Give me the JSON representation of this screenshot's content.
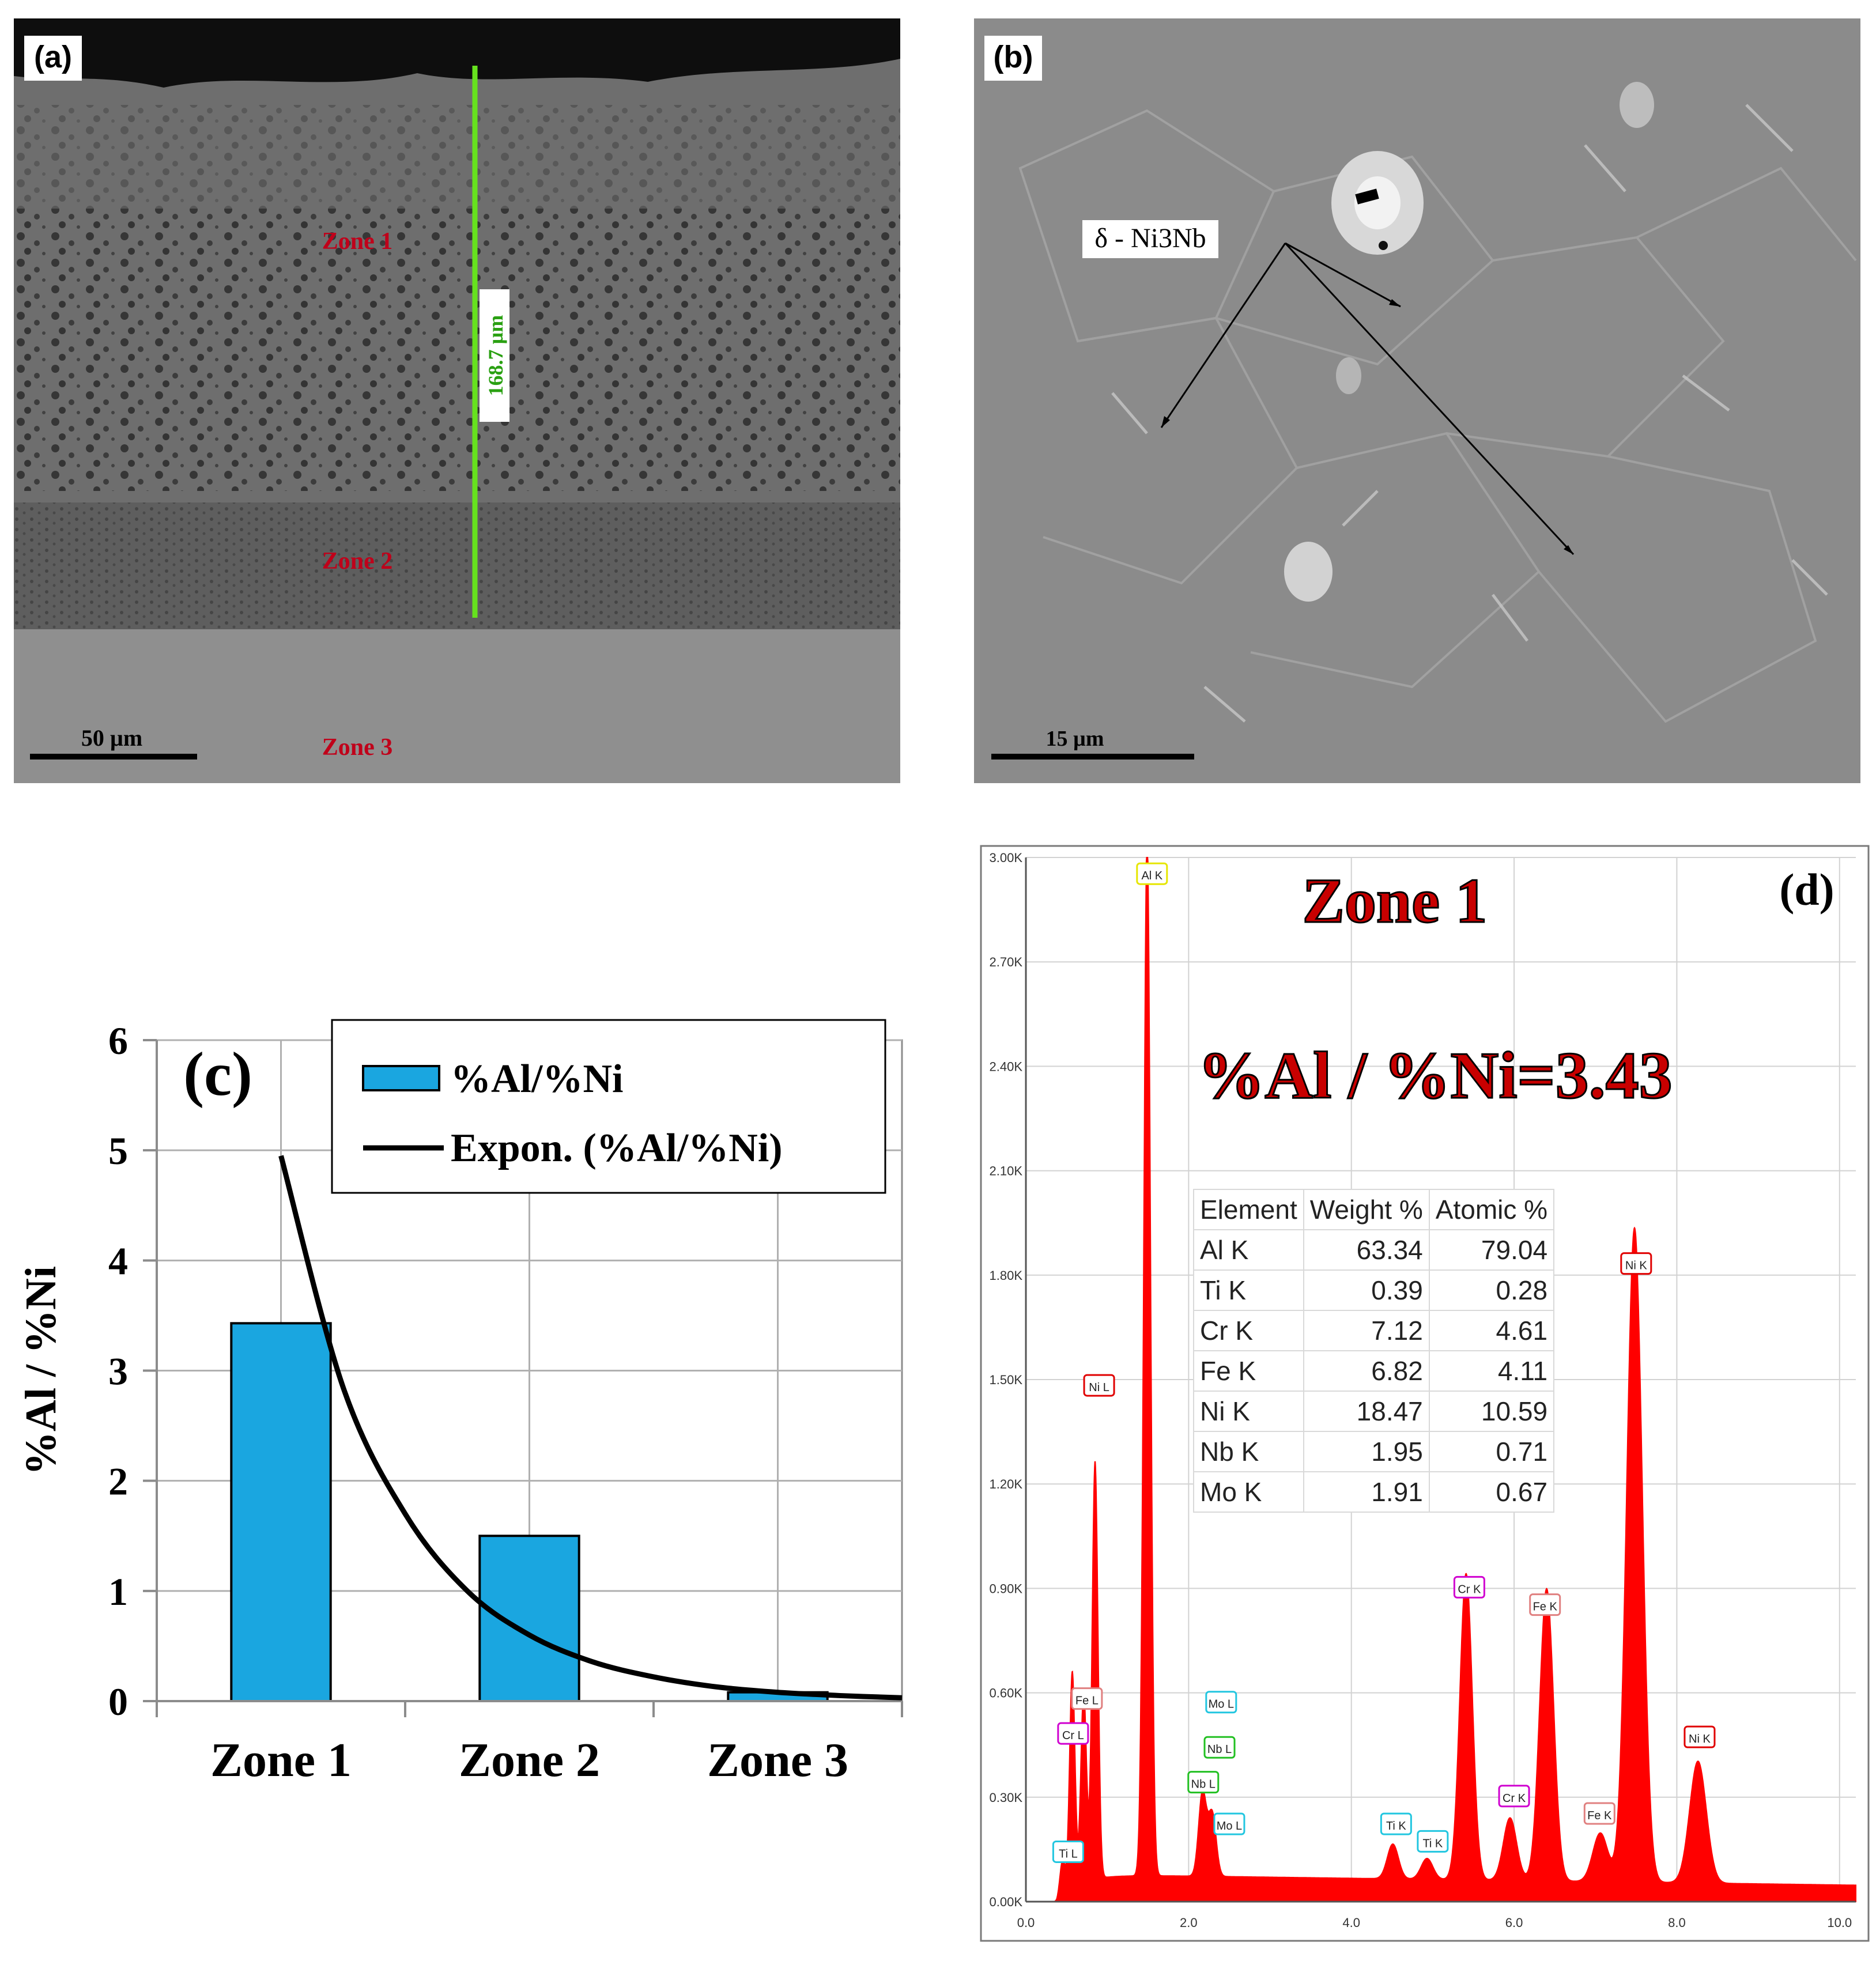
{
  "colors": {
    "bar_fill": "#1aa6e0",
    "trend_line": "#000000",
    "spectrum": "#ff0000",
    "zone_label": "#c0001a",
    "thickness_line": "#66e21e",
    "grid": "#b0b0b0"
  },
  "panel_a": {
    "label": "(a)",
    "zone_labels": [
      "Zone 1",
      "Zone 2",
      "Zone 3"
    ],
    "thickness_label": "168.7 µm",
    "scale_bar_label": "50 µm"
  },
  "panel_b": {
    "label": "(b)",
    "phase_label": "δ - Ni3Nb",
    "scale_bar_label": "15 µm"
  },
  "panel_d": {
    "zone_title": "Zone 1",
    "ratio_text": "%Al / %Ni=3.43",
    "table": {
      "headers": [
        "Element",
        "Weight %",
        "Atomic %"
      ],
      "rows": [
        [
          "Al K",
          "63.34",
          "79.04"
        ],
        [
          "Ti K",
          "0.39",
          "0.28"
        ],
        [
          "Cr K",
          "7.12",
          "4.61"
        ],
        [
          "Fe K",
          "6.82",
          "4.11"
        ],
        [
          "Ni K",
          "18.47",
          "10.59"
        ],
        [
          "Nb K",
          "1.95",
          "0.71"
        ],
        [
          "Mo K",
          "1.91",
          "0.67"
        ]
      ]
    }
  },
  "chart_data": [
    {
      "panel": "(c)",
      "type": "bar",
      "categories": [
        "Zone 1",
        "Zone 2",
        "Zone 3"
      ],
      "series": [
        {
          "name": "%Al/%Ni",
          "type": "bar",
          "values": [
            3.43,
            1.5,
            0.08
          ]
        },
        {
          "name": "Expon. (%Al/%Ni)",
          "type": "line",
          "trend": "exponential",
          "x": [
            0.0,
            0.25,
            0.5,
            0.75,
            1.0,
            1.25,
            1.5,
            1.75,
            2.0,
            2.25,
            2.5
          ],
          "values": [
            4.95,
            2.85,
            1.7,
            1.0,
            0.6,
            0.36,
            0.22,
            0.13,
            0.08,
            0.05,
            0.03
          ]
        }
      ],
      "title": "",
      "xlabel": "",
      "ylabel": "%Al / %Ni",
      "ylim": [
        0,
        6
      ],
      "yticks": [
        0,
        1,
        2,
        3,
        4,
        5,
        6
      ],
      "grid": true,
      "legend": "top-right"
    },
    {
      "panel": "(d)",
      "type": "area",
      "title": "Zone 1",
      "xlim": [
        0,
        10.2
      ],
      "ylim": [
        0,
        3.0
      ],
      "xticks": [
        0,
        2,
        4,
        6,
        8,
        10
      ],
      "xtick_labels": [
        "0.0",
        "2.0",
        "4.0",
        "6.0",
        "8.0",
        "10.0"
      ],
      "yticks": [
        0,
        0.3,
        0.6,
        0.9,
        1.2,
        1.5,
        1.8,
        2.1,
        2.4,
        2.7,
        3.0
      ],
      "ytick_labels": [
        "0.00K",
        "0.30K",
        "0.60K",
        "0.90K",
        "1.20K",
        "1.50K",
        "1.80K",
        "2.10K",
        "2.40K",
        "2.70K",
        "3.00K"
      ],
      "baseline": 0.08,
      "peaks": [
        {
          "label": "Ti L",
          "energy": 0.45,
          "height": 0.1,
          "color": "#22c6e0"
        },
        {
          "label": "Cr L",
          "energy": 0.57,
          "height": 0.62,
          "color": "#d000d0"
        },
        {
          "label": "Fe L",
          "energy": 0.71,
          "height": 0.55,
          "color": "#e08080"
        },
        {
          "label": "Ni L",
          "energy": 0.85,
          "height": 1.2,
          "color": "#e00000"
        },
        {
          "label": "Al K",
          "energy": 1.49,
          "height": 3.0,
          "color": "#e6e600"
        },
        {
          "label": "Nb L",
          "energy": 2.17,
          "height": 0.24,
          "color": "#22c022"
        },
        {
          "label": "Mo L",
          "energy": 2.29,
          "height": 0.18,
          "color": "#22c6e0"
        },
        {
          "label": "Ti K",
          "energy": 4.51,
          "height": 0.1,
          "color": "#22c6e0"
        },
        {
          "label": "Ti K",
          "energy": 4.93,
          "height": 0.06,
          "color": "#22c6e0"
        },
        {
          "label": "Cr K",
          "energy": 5.41,
          "height": 0.88,
          "color": "#d000d0"
        },
        {
          "label": "Cr K",
          "energy": 5.95,
          "height": 0.18,
          "color": "#d000d0"
        },
        {
          "label": "Fe K",
          "energy": 6.4,
          "height": 0.84,
          "color": "#e08080"
        },
        {
          "label": "Fe K",
          "energy": 7.06,
          "height": 0.14,
          "color": "#e08080"
        },
        {
          "label": "Ni K",
          "energy": 7.48,
          "height": 1.88,
          "color": "#e00000"
        },
        {
          "label": "Ni K",
          "energy": 8.26,
          "height": 0.35,
          "color": "#e00000"
        }
      ],
      "peak_tags": [
        {
          "label": "Al K",
          "energy": 1.55,
          "y": 2.95,
          "color": "#e6e600"
        },
        {
          "label": "Ni L",
          "energy": 0.9,
          "y": 1.48,
          "color": "#e00000"
        },
        {
          "label": "Fe L",
          "energy": 0.75,
          "y": 0.58,
          "color": "#e08080"
        },
        {
          "label": "Cr L",
          "energy": 0.58,
          "y": 0.48,
          "color": "#d000d0"
        },
        {
          "label": "Ti L",
          "energy": 0.52,
          "y": 0.14,
          "color": "#22c6e0"
        },
        {
          "label": "Mo L",
          "energy": 2.4,
          "y": 0.57,
          "color": "#22c6e0"
        },
        {
          "label": "Nb L",
          "energy": 2.38,
          "y": 0.44,
          "color": "#22c022"
        },
        {
          "label": "Nb L",
          "energy": 2.18,
          "y": 0.34,
          "color": "#22c022"
        },
        {
          "label": "Mo L",
          "energy": 2.5,
          "y": 0.22,
          "color": "#22c6e0"
        },
        {
          "label": "Ti K",
          "energy": 4.55,
          "y": 0.22,
          "color": "#22c6e0"
        },
        {
          "label": "Ti K",
          "energy": 5.0,
          "y": 0.17,
          "color": "#22c6e0"
        },
        {
          "label": "Cr K",
          "energy": 5.45,
          "y": 0.9,
          "color": "#d000d0"
        },
        {
          "label": "Fe K",
          "energy": 6.38,
          "y": 0.85,
          "color": "#e08080"
        },
        {
          "label": "Cr K",
          "energy": 6.0,
          "y": 0.3,
          "color": "#d000d0"
        },
        {
          "label": "Fe K",
          "energy": 7.05,
          "y": 0.25,
          "color": "#e08080"
        },
        {
          "label": "Ni K",
          "energy": 7.5,
          "y": 1.83,
          "color": "#e00000"
        },
        {
          "label": "Ni K",
          "energy": 8.28,
          "y": 0.47,
          "color": "#e00000"
        }
      ]
    }
  ]
}
